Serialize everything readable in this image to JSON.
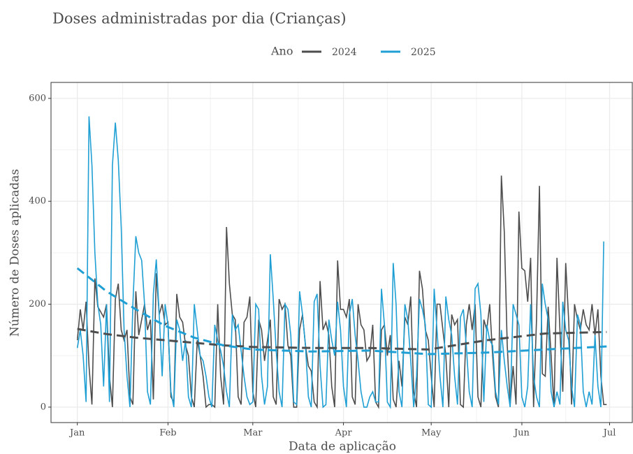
{
  "chart_data": {
    "type": "line",
    "title": "Doses administradas por dia (Crianças)",
    "legend_title": "Ano",
    "xlabel": "Data de aplicação",
    "ylabel": "Número de Doses aplicadas",
    "xlim": [
      -9,
      190
    ],
    "ylim": [
      -30,
      631
    ],
    "xticks": [
      {
        "value": 0,
        "label": "Jan"
      },
      {
        "value": 31,
        "label": "Feb"
      },
      {
        "value": 60,
        "label": "Mar"
      },
      {
        "value": 91,
        "label": "Apr"
      },
      {
        "value": 121,
        "label": "May"
      },
      {
        "value": 152,
        "label": "Jun"
      },
      {
        "value": 182,
        "label": "Jul"
      }
    ],
    "yticks": [
      0,
      200,
      400,
      600
    ],
    "grid": true,
    "x": [
      0,
      1,
      2,
      3,
      4,
      5,
      6,
      7,
      8,
      9,
      10,
      11,
      12,
      13,
      14,
      15,
      16,
      17,
      18,
      19,
      20,
      21,
      22,
      23,
      24,
      25,
      26,
      27,
      28,
      29,
      30,
      31,
      32,
      33,
      34,
      35,
      36,
      37,
      38,
      39,
      40,
      41,
      42,
      43,
      44,
      45,
      46,
      47,
      48,
      49,
      50,
      51,
      52,
      53,
      54,
      55,
      56,
      57,
      58,
      59,
      60,
      61,
      62,
      63,
      64,
      65,
      66,
      67,
      68,
      69,
      70,
      71,
      72,
      73,
      74,
      75,
      76,
      77,
      78,
      79,
      80,
      81,
      82,
      83,
      84,
      85,
      86,
      87,
      88,
      89,
      90,
      91,
      92,
      93,
      94,
      95,
      96,
      97,
      98,
      99,
      100,
      101,
      102,
      103,
      104,
      105,
      106,
      107,
      108,
      109,
      110,
      111,
      112,
      113,
      114,
      115,
      116,
      117,
      118,
      119,
      120,
      121,
      122,
      123,
      124,
      125,
      126,
      127,
      128,
      129,
      130,
      131,
      132,
      133,
      134,
      135,
      136,
      137,
      138,
      139,
      140,
      141,
      142,
      143,
      144,
      145,
      146,
      147,
      148,
      149,
      150,
      151,
      152,
      153,
      154,
      155,
      156,
      157,
      158,
      159,
      160,
      161,
      162,
      163,
      164,
      165,
      166,
      167,
      168,
      169,
      170,
      171,
      172,
      173,
      174,
      175,
      176,
      177,
      178,
      179,
      180,
      181
    ],
    "series": [
      {
        "name": "2024",
        "color": "#4d4d4d",
        "values": [
          130,
          190,
          150,
          205,
          80,
          5,
          250,
          195,
          185,
          175,
          200,
          60,
          0,
          210,
          240,
          150,
          130,
          150,
          20,
          5,
          225,
          140,
          170,
          200,
          150,
          170,
          15,
          260,
          180,
          200,
          160,
          165,
          20,
          10,
          220,
          175,
          165,
          120,
          100,
          20,
          0,
          130,
          100,
          60,
          0,
          5,
          5,
          0,
          200,
          60,
          5,
          350,
          240,
          180,
          170,
          20,
          5,
          165,
          175,
          215,
          30,
          0,
          170,
          150,
          90,
          130,
          170,
          20,
          5,
          210,
          190,
          200,
          120,
          100,
          0,
          0,
          150,
          180,
          120,
          80,
          70,
          10,
          0,
          245,
          150,
          165,
          140,
          40,
          0,
          285,
          190,
          190,
          175,
          210,
          20,
          5,
          200,
          160,
          150,
          90,
          100,
          160,
          10,
          0,
          150,
          160,
          100,
          140,
          15,
          0,
          90,
          40,
          175,
          160,
          215,
          30,
          0,
          265,
          230,
          150,
          130,
          60,
          0,
          200,
          200,
          150,
          100,
          0,
          180,
          160,
          170,
          5,
          0,
          160,
          200,
          150,
          200,
          20,
          0,
          170,
          150,
          200,
          100,
          20,
          0,
          450,
          340,
          120,
          5,
          80,
          5,
          380,
          270,
          265,
          205,
          290,
          0,
          170,
          430,
          65,
          60,
          195,
          100,
          0,
          290,
          150,
          30,
          280,
          170,
          5,
          200,
          170,
          150,
          190,
          160,
          150,
          200,
          140,
          190,
          60,
          5,
          5
        ],
        "trend_x": [
          0,
          10,
          20,
          30,
          40,
          50,
          60,
          80,
          100,
          120,
          140,
          160,
          181
        ],
        "trend": [
          152,
          142,
          135,
          130,
          125,
          120,
          117,
          115,
          115,
          112,
          130,
          143,
          146
        ]
      },
      {
        "name": "2025",
        "color": "#1f9fd4",
        "values": [
          115,
          150,
          100,
          10,
          565,
          470,
          300,
          200,
          160,
          40,
          200,
          10,
          470,
          553,
          480,
          350,
          150,
          60,
          0,
          200,
          332,
          300,
          285,
          200,
          30,
          5,
          220,
          287,
          180,
          60,
          200,
          160,
          30,
          0,
          170,
          150,
          90,
          130,
          20,
          0,
          200,
          150,
          100,
          90,
          60,
          20,
          0,
          160,
          130,
          110,
          80,
          30,
          0,
          180,
          150,
          160,
          110,
          60,
          20,
          5,
          10,
          200,
          190,
          60,
          5,
          40,
          297,
          210,
          110,
          30,
          0,
          200,
          190,
          140,
          10,
          5,
          225,
          180,
          120,
          20,
          0,
          205,
          220,
          80,
          0,
          5,
          170,
          130,
          100,
          205,
          150,
          40,
          0,
          180,
          210,
          140,
          90,
          30,
          0,
          0,
          20,
          30,
          10,
          10,
          230,
          160,
          10,
          0,
          280,
          200,
          30,
          0,
          200,
          170,
          90,
          0,
          60,
          210,
          190,
          160,
          5,
          0,
          230,
          150,
          60,
          0,
          215,
          170,
          140,
          60,
          5,
          175,
          190,
          120,
          30,
          0,
          230,
          240,
          180,
          10,
          160,
          130,
          120,
          30,
          5,
          150,
          90,
          40,
          0,
          200,
          180,
          160,
          20,
          0,
          40,
          200,
          60,
          20,
          0,
          240,
          200,
          170,
          30,
          0,
          30,
          5,
          205,
          150,
          130,
          40,
          0,
          180,
          160,
          30,
          0,
          30,
          5,
          140,
          40,
          0,
          322,
          null
        ],
        "trend_x": [
          0,
          10,
          20,
          30,
          40,
          50,
          60,
          80,
          100,
          120,
          140,
          160,
          181
        ],
        "trend": [
          270,
          225,
          190,
          158,
          135,
          120,
          112,
          108,
          110,
          103,
          106,
          112,
          118
        ]
      }
    ]
  }
}
